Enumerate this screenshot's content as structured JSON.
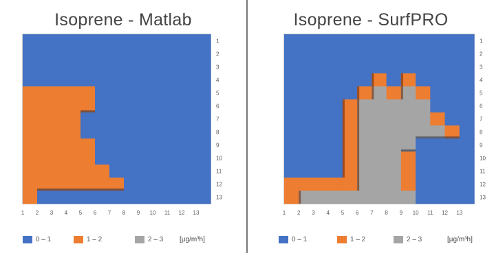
{
  "colors": {
    "low": "#4472c4",
    "mid": "#ed7d31",
    "high": "#a5a5a5",
    "blue_light": "#5b8edb",
    "orange_dark": "#6b2c0c"
  },
  "legend": {
    "items": [
      {
        "label": "0 – 1",
        "color": "#4472c4"
      },
      {
        "label": "1 – 2",
        "color": "#ed7d31"
      },
      {
        "label": "2 – 3",
        "color": "#a5a5a5"
      }
    ],
    "unit": "[µg/m³h]"
  },
  "chart_data": [
    {
      "type": "heatmap",
      "title": "Isoprene - Matlab",
      "x_ticks": [
        "1",
        "2",
        "3",
        "4",
        "5",
        "6",
        "7",
        "8",
        "9",
        "10",
        "11",
        "12",
        "13"
      ],
      "y_ticks": [
        "1",
        "2",
        "3",
        "4",
        "5",
        "6",
        "7",
        "8",
        "9",
        "10",
        "11",
        "12",
        "13"
      ],
      "grid": [
        [
          0,
          0,
          0,
          0,
          0,
          0,
          0,
          0,
          0,
          0,
          0,
          0,
          0
        ],
        [
          0,
          0,
          0,
          0,
          0,
          0,
          0,
          0,
          0,
          0,
          0,
          0,
          0
        ],
        [
          0,
          0,
          0,
          0,
          0,
          0,
          0,
          0,
          0,
          0,
          0,
          0,
          0
        ],
        [
          0,
          0,
          0,
          0,
          0,
          0,
          0,
          0,
          0,
          0,
          0,
          0,
          0
        ],
        [
          1,
          1,
          1,
          1,
          1,
          0,
          0,
          0,
          0,
          0,
          0,
          0,
          0
        ],
        [
          1,
          1,
          1,
          1,
          1,
          0,
          0,
          0,
          0,
          0,
          0,
          0,
          0
        ],
        [
          1,
          1,
          1,
          1,
          0,
          0,
          0,
          0,
          0,
          0,
          0,
          0,
          0
        ],
        [
          1,
          1,
          1,
          1,
          0,
          0,
          0,
          0,
          0,
          0,
          0,
          0,
          0
        ],
        [
          1,
          1,
          1,
          1,
          1,
          0,
          0,
          0,
          0,
          0,
          0,
          0,
          0
        ],
        [
          1,
          1,
          1,
          1,
          1,
          0,
          0,
          0,
          0,
          0,
          0,
          0,
          0
        ],
        [
          1,
          1,
          1,
          1,
          1,
          1,
          0,
          0,
          0,
          0,
          0,
          0,
          0
        ],
        [
          1,
          1,
          1,
          1,
          1,
          1,
          1,
          0,
          0,
          0,
          0,
          0,
          0
        ],
        [
          1,
          0,
          0,
          0,
          0,
          0,
          0,
          0,
          0,
          0,
          0,
          0,
          0
        ]
      ],
      "legend": "bottom"
    },
    {
      "type": "heatmap",
      "title": "Isoprene - SurfPRO",
      "x_ticks": [
        "1",
        "2",
        "3",
        "4",
        "5",
        "6",
        "7",
        "8",
        "9",
        "10",
        "11",
        "12",
        "13"
      ],
      "y_ticks": [
        "1",
        "2",
        "3",
        "4",
        "5",
        "6",
        "7",
        "8",
        "9",
        "10",
        "11",
        "12",
        "13"
      ],
      "grid": [
        [
          0,
          0,
          0,
          0,
          0,
          0,
          0,
          0,
          0,
          0,
          0,
          0,
          0
        ],
        [
          0,
          0,
          0,
          0,
          0,
          0,
          0,
          0,
          0,
          0,
          0,
          0,
          0
        ],
        [
          0,
          0,
          0,
          0,
          0,
          0,
          0,
          0,
          0,
          0,
          0,
          0,
          0
        ],
        [
          0,
          0,
          0,
          0,
          0,
          0,
          1,
          0,
          1,
          0,
          0,
          0,
          0
        ],
        [
          0,
          0,
          0,
          0,
          0,
          1,
          2,
          1,
          2,
          1,
          0,
          0,
          0
        ],
        [
          0,
          0,
          0,
          0,
          1,
          2,
          2,
          2,
          2,
          2,
          0,
          0,
          0
        ],
        [
          0,
          0,
          0,
          0,
          1,
          2,
          2,
          2,
          2,
          2,
          1,
          0,
          0
        ],
        [
          0,
          0,
          0,
          0,
          1,
          2,
          2,
          2,
          2,
          2,
          2,
          1,
          0
        ],
        [
          0,
          0,
          0,
          0,
          1,
          2,
          2,
          2,
          2,
          0,
          0,
          0,
          0
        ],
        [
          0,
          0,
          0,
          0,
          1,
          2,
          2,
          2,
          1,
          0,
          0,
          0,
          0
        ],
        [
          0,
          0,
          0,
          0,
          1,
          2,
          2,
          2,
          1,
          0,
          0,
          0,
          0
        ],
        [
          1,
          1,
          1,
          1,
          1,
          2,
          2,
          2,
          1,
          0,
          0,
          0,
          0
        ],
        [
          1,
          2,
          2,
          2,
          2,
          2,
          2,
          2,
          2,
          0,
          0,
          0,
          0
        ]
      ],
      "legend": "bottom"
    }
  ]
}
